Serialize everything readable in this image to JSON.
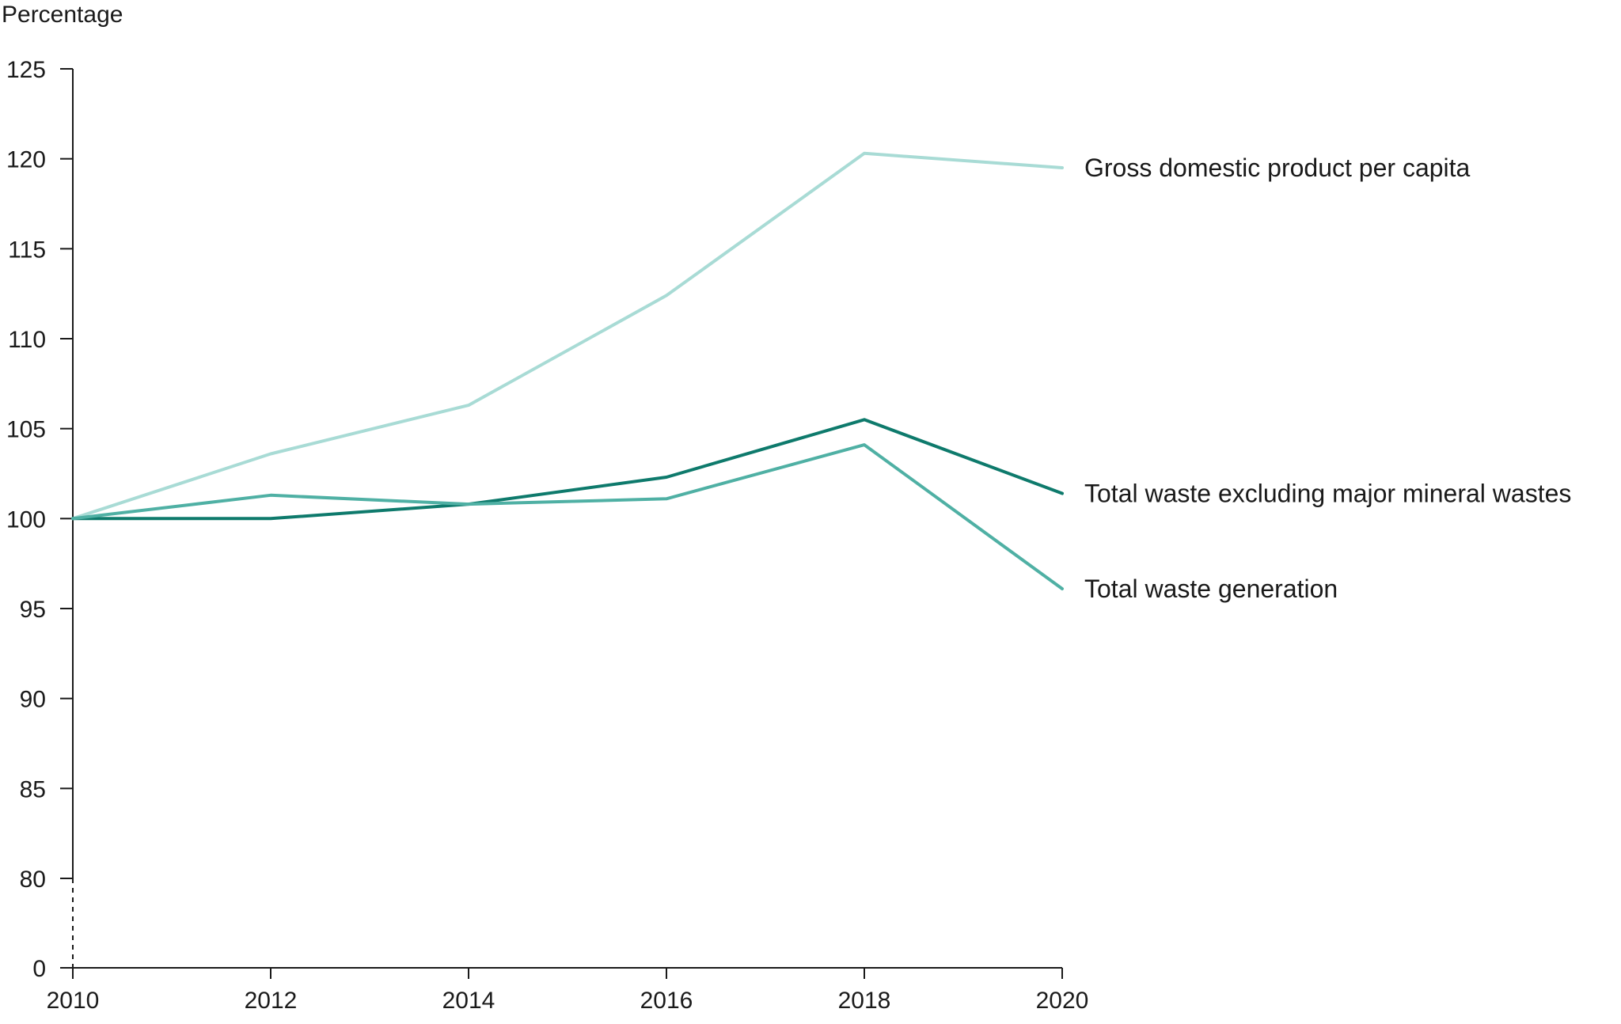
{
  "chart_data": {
    "type": "line",
    "ylabel": "Percentage",
    "x": [
      2010,
      2012,
      2014,
      2016,
      2018,
      2020
    ],
    "x_ticks": [
      "2010",
      "2012",
      "2014",
      "2016",
      "2018",
      "2020"
    ],
    "y_ticks": [
      "0",
      "80",
      "85",
      "90",
      "95",
      "100",
      "105",
      "110",
      "115",
      "120",
      "125"
    ],
    "ylim": [
      0,
      125
    ],
    "axis_break": "between 0 and 80",
    "grid": false,
    "legend": "direct labels at line ends (right)",
    "series": [
      {
        "name": "Gross domestic product per capita",
        "color": "#a8dbd5",
        "values": [
          100,
          103.6,
          106.3,
          112.4,
          120.3,
          119.5
        ]
      },
      {
        "name": "Total waste excluding major mineral wastes",
        "color": "#0e7a6c",
        "values": [
          100,
          100,
          100.8,
          102.3,
          105.5,
          101.4
        ]
      },
      {
        "name": "Total waste generation",
        "color": "#4fb0a4",
        "values": [
          100,
          101.3,
          100.8,
          101.1,
          104.1,
          96.1
        ]
      }
    ]
  }
}
